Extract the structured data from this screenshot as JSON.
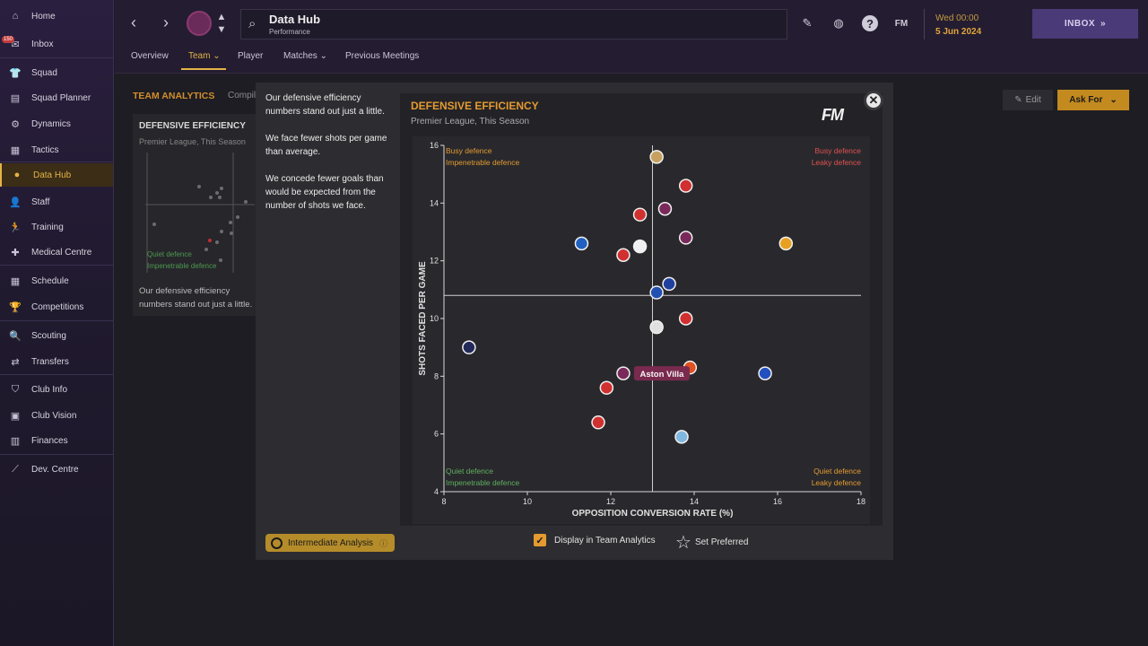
{
  "sidebar": {
    "inbox_badge": "150",
    "items": [
      {
        "label": "Home",
        "icon": "home-icon",
        "glyph": "⌂"
      },
      {
        "label": "Inbox",
        "icon": "inbox-icon",
        "glyph": "✉"
      },
      {
        "label": "Squad",
        "icon": "squad-icon",
        "glyph": "👕"
      },
      {
        "label": "Squad Planner",
        "icon": "planner-icon",
        "glyph": "▤"
      },
      {
        "label": "Dynamics",
        "icon": "dynamics-icon",
        "glyph": "⚙"
      },
      {
        "label": "Tactics",
        "icon": "tactics-icon",
        "glyph": "▦"
      },
      {
        "label": "Data Hub",
        "icon": "data-hub-icon",
        "glyph": "●"
      },
      {
        "label": "Staff",
        "icon": "staff-icon",
        "glyph": "👤"
      },
      {
        "label": "Training",
        "icon": "training-icon",
        "glyph": "🏃"
      },
      {
        "label": "Medical Centre",
        "icon": "medical-icon",
        "glyph": "✚"
      },
      {
        "label": "Schedule",
        "icon": "schedule-icon",
        "glyph": "▦"
      },
      {
        "label": "Competitions",
        "icon": "trophy-icon",
        "glyph": "🏆"
      },
      {
        "label": "Scouting",
        "icon": "scouting-icon",
        "glyph": "🔍"
      },
      {
        "label": "Transfers",
        "icon": "transfers-icon",
        "glyph": "⇄"
      },
      {
        "label": "Club Info",
        "icon": "club-info-icon",
        "glyph": "⛉"
      },
      {
        "label": "Club Vision",
        "icon": "club-vision-icon",
        "glyph": "▣"
      },
      {
        "label": "Finances",
        "icon": "finances-icon",
        "glyph": "▥"
      },
      {
        "label": "Dev. Centre",
        "icon": "dev-centre-icon",
        "glyph": "⟋"
      }
    ]
  },
  "topbar": {
    "title": "Data Hub",
    "subtitle": "Performance",
    "date_line1": "Wed 00:00",
    "date_line2": "5 Jun 2024",
    "inbox_label": "INBOX",
    "fm_label": "FM"
  },
  "subnav": {
    "tabs": [
      "Overview",
      "Team",
      "Player",
      "Matches",
      "Previous Meetings"
    ]
  },
  "content": {
    "team_analytics_title": "TEAM ANALYTICS",
    "team_analytics_sub": "Compil",
    "card_title": "DEFENSIVE EFFICIENCY",
    "card_subtitle": "Premier League, This Season",
    "card_para": "Our defensive efficiency numbers stand out just a little.",
    "mini_label_1": "Quiet defence",
    "mini_label_2": "Impenetrable defence",
    "edit_label": "Edit",
    "askfor_label": "Ask For"
  },
  "modal": {
    "para1": "Our defensive efficiency numbers stand out just a little.",
    "para2": "We face fewer shots per game than average.",
    "para3": "We concede fewer goals than would be expected from the number of shots we face.",
    "intermediate_label": "Intermediate Analysis",
    "display_label": "Display in Team Analytics",
    "set_preferred_label": "Set Preferred",
    "logo": "FM"
  },
  "chart_data": {
    "type": "scatter",
    "title": "DEFENSIVE EFFICIENCY",
    "subtitle": "Premier League, This Season",
    "xlabel": "OPPOSITION CONVERSION RATE (%)",
    "ylabel": "SHOTS FACED PER GAME",
    "xlim": [
      8,
      18
    ],
    "ylim": [
      4,
      16
    ],
    "xticks": [
      8,
      10,
      12,
      14,
      16,
      18
    ],
    "yticks": [
      4,
      6,
      8,
      10,
      12,
      14,
      16
    ],
    "avg_x": 13.0,
    "avg_y": 10.8,
    "grid": false,
    "quadrant_labels": {
      "top_left": [
        "Busy defence",
        "Impenetrable defence"
      ],
      "top_right": [
        "Busy defence",
        "Leaky defence"
      ],
      "bottom_left": [
        "Quiet defence",
        "Impenetrable defence"
      ],
      "bottom_right": [
        "Quiet defence",
        "Leaky defence"
      ]
    },
    "highlight_label": "Aston Villa",
    "points": [
      {
        "x": 13.1,
        "y": 15.6,
        "color": "#c8a060"
      },
      {
        "x": 13.8,
        "y": 14.6,
        "color": "#d03030"
      },
      {
        "x": 12.7,
        "y": 13.6,
        "color": "#d03030"
      },
      {
        "x": 13.3,
        "y": 13.8,
        "color": "#7a2a5a"
      },
      {
        "x": 13.8,
        "y": 12.8,
        "color": "#7a2a5a"
      },
      {
        "x": 11.3,
        "y": 12.6,
        "color": "#2060c0"
      },
      {
        "x": 12.7,
        "y": 12.5,
        "color": "#f0f0f0"
      },
      {
        "x": 12.3,
        "y": 12.2,
        "color": "#d03030"
      },
      {
        "x": 16.2,
        "y": 12.6,
        "color": "#e8a020"
      },
      {
        "x": 13.4,
        "y": 11.2,
        "color": "#2040a0"
      },
      {
        "x": 13.1,
        "y": 10.9,
        "color": "#2050b0"
      },
      {
        "x": 13.8,
        "y": 10.0,
        "color": "#d03030"
      },
      {
        "x": 13.1,
        "y": 9.7,
        "color": "#e0e0e0"
      },
      {
        "x": 8.6,
        "y": 9.0,
        "color": "#222a5a"
      },
      {
        "x": 12.3,
        "y": 8.1,
        "color": "#7a2a5a"
      },
      {
        "x": 13.9,
        "y": 8.3,
        "color": "#e05020"
      },
      {
        "x": 15.7,
        "y": 8.1,
        "color": "#2050c0"
      },
      {
        "x": 11.9,
        "y": 7.6,
        "color": "#d03030"
      },
      {
        "x": 11.7,
        "y": 6.4,
        "color": "#d03030"
      },
      {
        "x": 13.7,
        "y": 5.9,
        "color": "#80b8e0"
      }
    ]
  }
}
